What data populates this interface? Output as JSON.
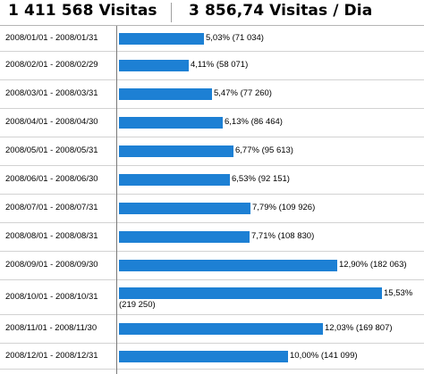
{
  "header": {
    "total_visits": "1 411 568 Visitas",
    "visits_per_day": "3 856,74 Visitas / Dia"
  },
  "chart_data": {
    "type": "bar",
    "orientation": "horizontal",
    "categories": [
      "2008/01/01 - 2008/01/31",
      "2008/02/01 - 2008/02/29",
      "2008/03/01 - 2008/03/31",
      "2008/04/01 - 2008/04/30",
      "2008/05/01 - 2008/05/31",
      "2008/06/01 - 2008/06/30",
      "2008/07/01 - 2008/07/31",
      "2008/08/01 - 2008/08/31",
      "2008/09/01 - 2008/09/30",
      "2008/10/01 - 2008/10/31",
      "2008/11/01 - 2008/11/30",
      "2008/12/01 - 2008/12/31"
    ],
    "values": [
      71034,
      58071,
      77260,
      86464,
      95613,
      92151,
      109926,
      108830,
      182063,
      219250,
      169807,
      141099
    ],
    "percentages": [
      5.03,
      4.11,
      5.47,
      6.13,
      6.77,
      6.53,
      7.79,
      7.71,
      12.9,
      15.53,
      12.03,
      10.0
    ],
    "labels": [
      "5,03% (71 034)",
      "4,11% (58 071)",
      "5,47% (77 260)",
      "6,13% (86 464)",
      "6,77% (95 613)",
      "6,53% (92 151)",
      "7,79% (109 926)",
      "7,71% (108 830)",
      "12,90% (182 063)",
      "15,53%|(219 250)",
      "12,03% (169 807)",
      "10,00% (141 099)"
    ],
    "bar_color": "#1d80d4"
  }
}
